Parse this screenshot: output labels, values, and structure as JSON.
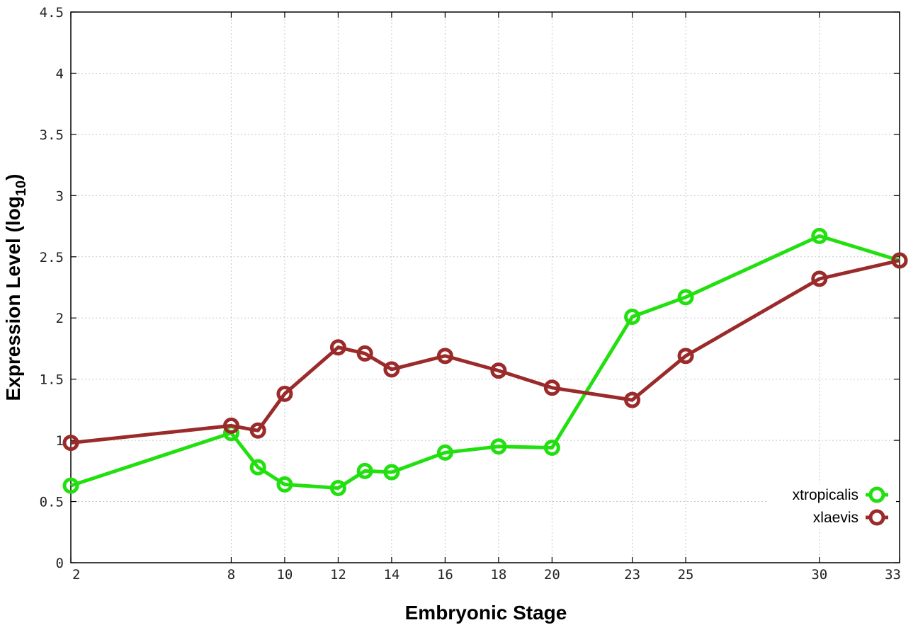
{
  "chart_data": {
    "type": "line",
    "xlabel": "Embryonic Stage",
    "ylabel": "Expression Level (log",
    "ylabel_subscript": "10",
    "ylabel_suffix": ")",
    "xlim": [
      2,
      33
    ],
    "ylim": [
      0,
      4.5
    ],
    "x_ticks": [
      2,
      8,
      10,
      12,
      14,
      16,
      18,
      20,
      23,
      25,
      30,
      33
    ],
    "x_tick_labels": [
      "2",
      "8",
      "10",
      "12",
      "14",
      "16",
      "18",
      "20",
      "23",
      "25",
      "30",
      "33"
    ],
    "y_ticks": [
      0,
      0.5,
      1,
      1.5,
      2,
      2.5,
      3,
      3.5,
      4,
      4.5
    ],
    "y_tick_labels": [
      "0",
      "0.5",
      "1",
      "1.5",
      "2",
      "2.5",
      "3",
      "3.5",
      "4",
      "4.5"
    ],
    "grid": true,
    "legend_position": "bottom-right",
    "series": [
      {
        "name": "xtropicalis",
        "color": "#22e010",
        "x": [
          2,
          8,
          9,
          10,
          12,
          13,
          14,
          16,
          18,
          20,
          23,
          25,
          30,
          33
        ],
        "y": [
          0.63,
          1.06,
          0.78,
          0.64,
          0.61,
          0.75,
          0.74,
          0.9,
          0.95,
          0.94,
          2.01,
          2.17,
          2.67,
          2.47
        ]
      },
      {
        "name": "xlaevis",
        "color": "#9b2a2a",
        "x": [
          2,
          8,
          9,
          10,
          12,
          13,
          14,
          16,
          18,
          20,
          23,
          25,
          30,
          33
        ],
        "y": [
          0.98,
          1.12,
          1.08,
          1.38,
          1.76,
          1.71,
          1.58,
          1.69,
          1.57,
          1.43,
          1.33,
          1.69,
          2.32,
          2.47
        ]
      }
    ]
  }
}
